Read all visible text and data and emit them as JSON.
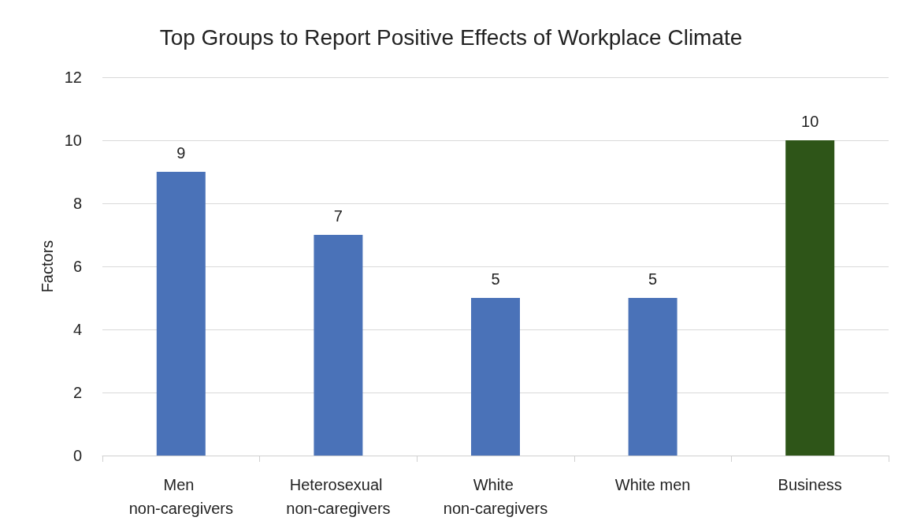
{
  "chart_data": {
    "type": "bar",
    "title": "Top Groups to Report Positive Effects of Workplace Climate",
    "ylabel": "Factors",
    "categories": [
      "Men non-caregivers",
      "Heterosexual non-caregivers",
      "White non-caregivers",
      "White men",
      "Business"
    ],
    "values": [
      9,
      7,
      5,
      5,
      10
    ],
    "colors": [
      "#4a72b8",
      "#4a72b8",
      "#4a72b8",
      "#4a72b8",
      "#2e5518"
    ],
    "ylim": [
      0,
      12
    ],
    "yticks": [
      0,
      2,
      4,
      6,
      8,
      10,
      12
    ],
    "grid": "y",
    "data_labels": true
  }
}
